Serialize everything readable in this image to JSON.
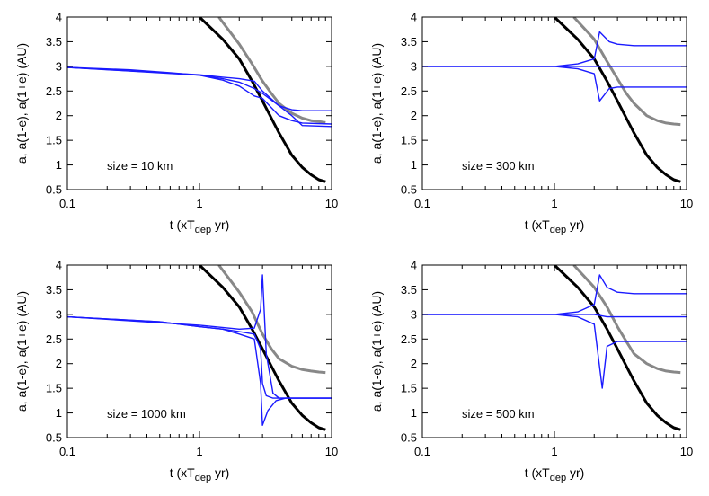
{
  "figure": {
    "xlabel_main": "t (xT",
    "xlabel_sub": "dep",
    "xlabel_tail": " yr)",
    "ylabel": "a, a(1-e), a(1+e) (AU)"
  },
  "colors": {
    "black": "#000000",
    "gray": "#888888",
    "blue": "#1a1aff"
  },
  "chart_data": [
    {
      "type": "line",
      "label": "size = 10 km",
      "xscale": "log",
      "xlim": [
        0.1,
        10
      ],
      "ylim": [
        0.5,
        4
      ],
      "xticks": [
        "0.1",
        "1",
        "10"
      ],
      "yticks": [
        "0.5",
        "1",
        "1.5",
        "2",
        "2.5",
        "3",
        "3.5",
        "4"
      ],
      "series": [
        {
          "color": "black",
          "x": [
            1.0,
            1.5,
            2.0,
            2.5,
            3.0,
            3.5,
            4.0,
            5.0,
            6.0,
            7.0,
            8.0,
            9.0
          ],
          "y": [
            4.0,
            3.55,
            3.15,
            2.7,
            2.3,
            1.95,
            1.65,
            1.2,
            0.95,
            0.8,
            0.7,
            0.66
          ]
        },
        {
          "color": "gray",
          "x": [
            1.4,
            2.0,
            2.5,
            3.0,
            3.5,
            4.0,
            5.0,
            6.0,
            7.0,
            8.0,
            9.0
          ],
          "y": [
            4.0,
            3.45,
            3.05,
            2.7,
            2.45,
            2.25,
            2.05,
            1.95,
            1.9,
            1.88,
            1.86
          ]
        },
        {
          "color": "blue",
          "x": [
            0.1,
            0.3,
            0.6,
            1.0,
            1.5,
            2.0,
            2.6,
            3.0,
            4.0,
            5.0,
            6.0,
            10.0
          ],
          "y": [
            2.98,
            2.93,
            2.87,
            2.82,
            2.75,
            2.68,
            2.55,
            2.45,
            2.2,
            2.12,
            2.1,
            2.1
          ]
        },
        {
          "color": "blue",
          "x": [
            0.1,
            1.0,
            1.5,
            2.0,
            2.6,
            3.0,
            4.0,
            5.0,
            6.0,
            10.0
          ],
          "y": [
            2.98,
            2.82,
            2.72,
            2.6,
            2.4,
            2.35,
            2.0,
            1.9,
            1.85,
            1.83
          ]
        },
        {
          "color": "blue",
          "x": [
            0.1,
            1.0,
            1.5,
            2.0,
            2.6,
            3.0,
            4.0,
            5.0,
            6.0,
            10.0
          ],
          "y": [
            2.98,
            2.83,
            2.78,
            2.75,
            2.7,
            2.5,
            2.2,
            2.0,
            1.8,
            1.78
          ]
        }
      ]
    },
    {
      "type": "line",
      "label": "size = 300 km",
      "xscale": "log",
      "xlim": [
        0.1,
        10
      ],
      "ylim": [
        0.5,
        4
      ],
      "xticks": [
        "0.1",
        "1",
        "10"
      ],
      "yticks": [
        "0.5",
        "1",
        "1.5",
        "2",
        "2.5",
        "3",
        "3.5",
        "4"
      ],
      "series": [
        {
          "color": "black",
          "x": [
            1.0,
            1.5,
            2.0,
            2.5,
            3.0,
            3.5,
            4.0,
            5.0,
            6.0,
            7.0,
            8.0,
            9.0
          ],
          "y": [
            4.0,
            3.55,
            3.15,
            2.7,
            2.3,
            1.95,
            1.65,
            1.2,
            0.95,
            0.8,
            0.7,
            0.66
          ]
        },
        {
          "color": "gray",
          "x": [
            1.4,
            2.0,
            2.5,
            3.0,
            3.5,
            4.0,
            5.0,
            6.0,
            7.0,
            8.0,
            9.0
          ],
          "y": [
            4.0,
            3.55,
            3.1,
            2.75,
            2.45,
            2.25,
            2.0,
            1.9,
            1.85,
            1.83,
            1.82
          ]
        },
        {
          "color": "blue",
          "x": [
            0.1,
            1.0,
            1.5,
            2.0,
            2.2,
            2.6,
            3.0,
            4.0,
            6.0,
            10.0
          ],
          "y": [
            3.0,
            3.0,
            3.05,
            3.15,
            3.7,
            3.5,
            3.45,
            3.42,
            3.42,
            3.42
          ]
        },
        {
          "color": "blue",
          "x": [
            0.1,
            1.0,
            1.5,
            2.0,
            2.2,
            2.6,
            3.0,
            4.0,
            6.0,
            10.0
          ],
          "y": [
            3.0,
            3.0,
            2.95,
            2.85,
            2.3,
            2.55,
            2.58,
            2.58,
            2.58,
            2.58
          ]
        },
        {
          "color": "blue",
          "x": [
            0.1,
            1.0,
            2.0,
            2.5,
            3.0,
            10.0
          ],
          "y": [
            3.0,
            3.0,
            3.0,
            3.0,
            3.0,
            3.0
          ]
        }
      ]
    },
    {
      "type": "line",
      "label": "size = 1000 km",
      "xscale": "log",
      "xlim": [
        0.1,
        10
      ],
      "ylim": [
        0.5,
        4
      ],
      "xticks": [
        "0.1",
        "1",
        "10"
      ],
      "yticks": [
        "0.5",
        "1",
        "1.5",
        "2",
        "2.5",
        "3",
        "3.5",
        "4"
      ],
      "series": [
        {
          "color": "black",
          "x": [
            1.0,
            1.5,
            2.0,
            2.5,
            3.0,
            3.5,
            4.0,
            5.0,
            6.0,
            7.0,
            8.0,
            9.0
          ],
          "y": [
            4.0,
            3.55,
            3.15,
            2.7,
            2.3,
            1.95,
            1.65,
            1.2,
            0.95,
            0.8,
            0.7,
            0.66
          ]
        },
        {
          "color": "gray",
          "x": [
            1.4,
            2.0,
            2.5,
            3.0,
            3.5,
            4.0,
            5.0,
            6.0,
            7.0,
            8.0,
            9.0
          ],
          "y": [
            4.0,
            3.45,
            3.05,
            2.6,
            2.3,
            2.1,
            1.95,
            1.88,
            1.85,
            1.83,
            1.82
          ]
        },
        {
          "color": "blue",
          "x": [
            0.1,
            0.5,
            1.0,
            1.5,
            2.0,
            2.6,
            2.9,
            3.0,
            3.2,
            3.6,
            4.0,
            10.0
          ],
          "y": [
            2.95,
            2.85,
            2.75,
            2.7,
            2.65,
            2.6,
            2.3,
            1.6,
            1.35,
            1.3,
            1.3,
            1.3
          ]
        },
        {
          "color": "blue",
          "x": [
            0.1,
            0.5,
            1.0,
            1.5,
            2.0,
            2.6,
            2.9,
            3.0,
            3.3,
            3.8,
            4.5,
            10.0
          ],
          "y": [
            2.95,
            2.85,
            2.75,
            2.7,
            2.6,
            2.5,
            1.6,
            0.75,
            1.05,
            1.25,
            1.3,
            1.3
          ]
        },
        {
          "color": "blue",
          "x": [
            0.1,
            1.0,
            2.0,
            2.6,
            2.9,
            3.0,
            3.2,
            3.6,
            4.0,
            10.0
          ],
          "y": [
            2.95,
            2.78,
            2.7,
            2.72,
            3.1,
            3.8,
            2.2,
            1.4,
            1.3,
            1.3
          ]
        }
      ]
    },
    {
      "type": "line",
      "label": "size = 500 km",
      "xscale": "log",
      "xlim": [
        0.1,
        10
      ],
      "ylim": [
        0.5,
        4
      ],
      "xticks": [
        "0.1",
        "1",
        "10"
      ],
      "yticks": [
        "0.5",
        "1",
        "1.5",
        "2",
        "2.5",
        "3",
        "3.5",
        "4"
      ],
      "series": [
        {
          "color": "black",
          "x": [
            1.0,
            1.5,
            2.0,
            2.5,
            3.0,
            3.5,
            4.0,
            5.0,
            6.0,
            7.0,
            8.0,
            9.0
          ],
          "y": [
            4.0,
            3.55,
            3.15,
            2.7,
            2.3,
            1.95,
            1.65,
            1.2,
            0.95,
            0.8,
            0.7,
            0.66
          ]
        },
        {
          "color": "gray",
          "x": [
            1.4,
            2.0,
            2.5,
            3.0,
            3.5,
            4.0,
            5.0,
            6.0,
            7.0,
            8.0,
            9.0
          ],
          "y": [
            4.0,
            3.55,
            3.15,
            2.75,
            2.45,
            2.2,
            2.0,
            1.9,
            1.85,
            1.83,
            1.82
          ]
        },
        {
          "color": "blue",
          "x": [
            0.1,
            1.0,
            1.5,
            2.0,
            2.2,
            2.5,
            3.0,
            4.0,
            6.0,
            10.0
          ],
          "y": [
            3.0,
            3.0,
            3.05,
            3.2,
            3.8,
            3.55,
            3.45,
            3.42,
            3.42,
            3.42
          ]
        },
        {
          "color": "blue",
          "x": [
            0.1,
            1.0,
            1.5,
            2.0,
            2.3,
            2.5,
            3.0,
            4.0,
            6.0,
            10.0
          ],
          "y": [
            3.0,
            3.0,
            2.95,
            2.8,
            1.5,
            2.35,
            2.45,
            2.45,
            2.45,
            2.45
          ]
        },
        {
          "color": "blue",
          "x": [
            0.1,
            1.0,
            2.0,
            2.5,
            3.0,
            10.0
          ],
          "y": [
            3.0,
            3.0,
            3.0,
            2.95,
            2.95,
            2.95
          ]
        }
      ]
    }
  ]
}
